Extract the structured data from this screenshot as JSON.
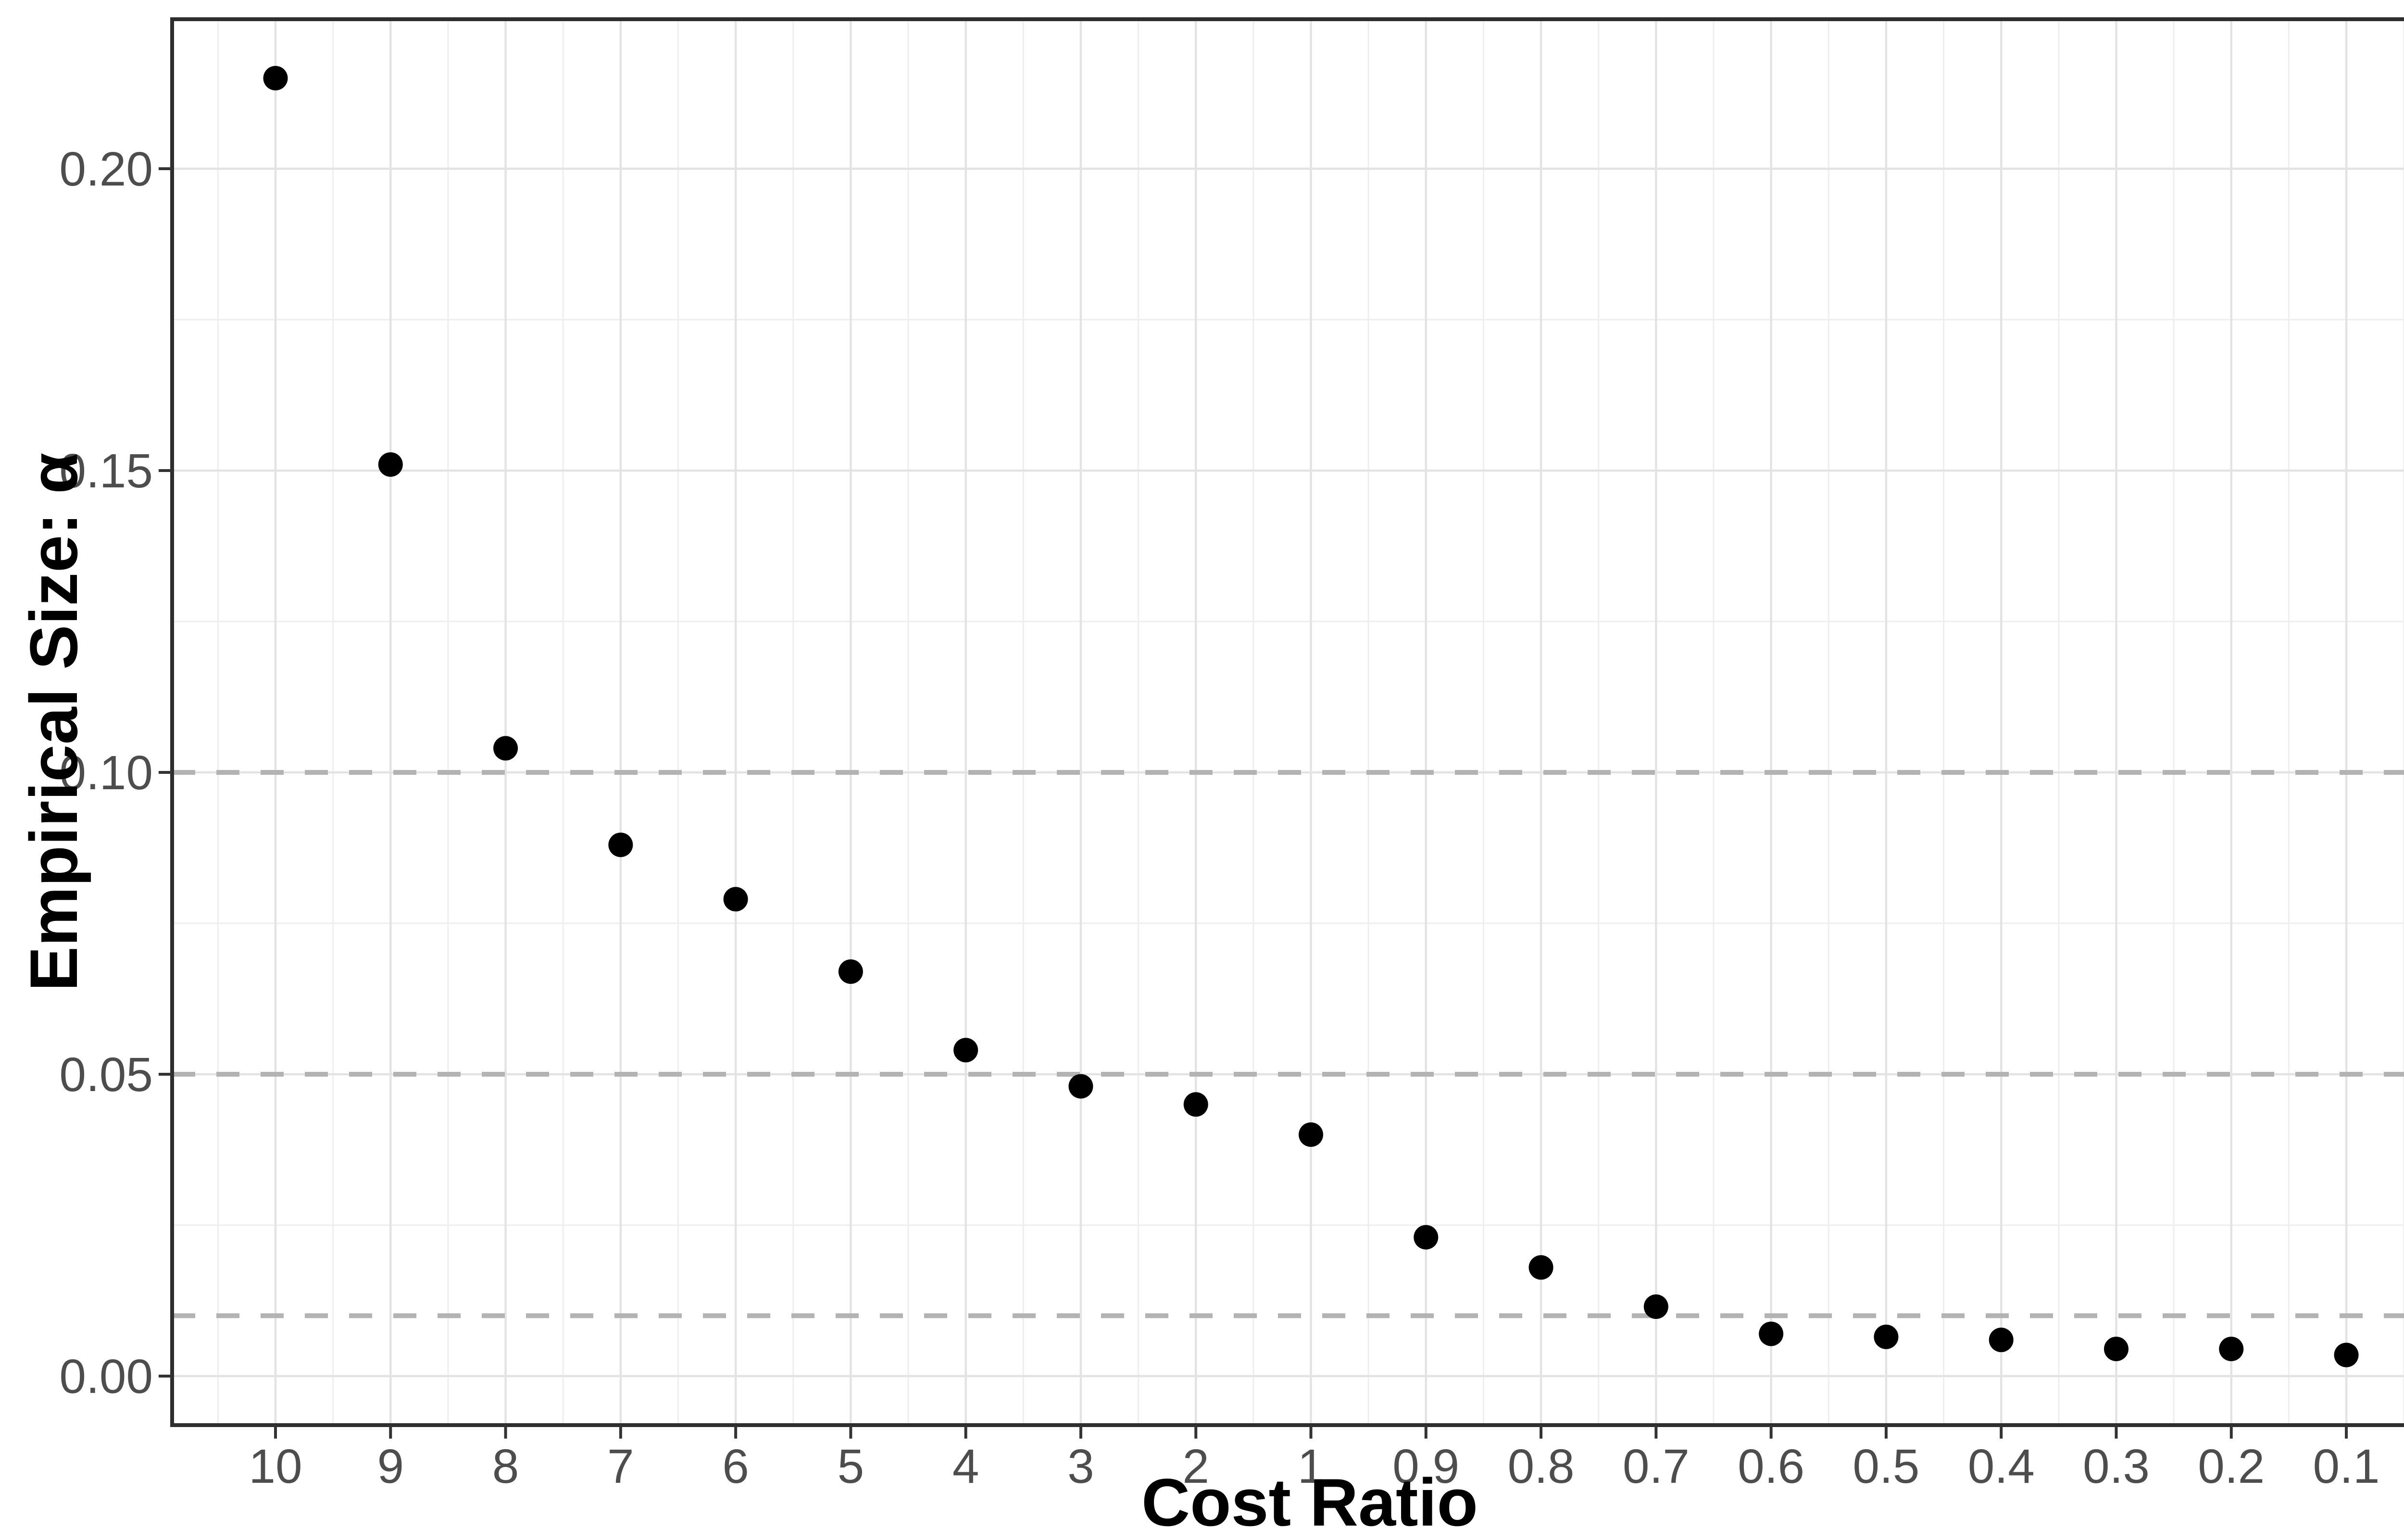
{
  "figure": {
    "background": "#ffffff"
  },
  "chart_data": {
    "type": "scatter",
    "title": "",
    "xlabel": "Cost Ratio",
    "ylabel": "Empirical Size: α",
    "categories": [
      "10",
      "9",
      "8",
      "7",
      "6",
      "5",
      "4",
      "3",
      "2",
      "1",
      "0.9",
      "0.8",
      "0.7",
      "0.6",
      "0.5",
      "0.4",
      "0.3",
      "0.2",
      "0.1"
    ],
    "values": [
      0.215,
      0.151,
      0.104,
      0.088,
      0.079,
      0.067,
      0.054,
      0.048,
      0.045,
      0.04,
      0.023,
      0.018,
      0.0115,
      0.007,
      0.0065,
      0.006,
      0.0045,
      0.0045,
      0.0035
    ],
    "y_tick_labels": [
      "0.00",
      "0.05",
      "0.10",
      "0.15",
      "0.20"
    ],
    "y_tick_values": [
      0,
      0.05,
      0.1,
      0.15,
      0.2
    ],
    "y_minor_values": [
      0.025,
      0.075,
      0.125,
      0.175
    ],
    "ylim": [
      -0.008,
      0.2247
    ],
    "grid": true,
    "legend": false,
    "reference_lines": {
      "values": [
        0.1,
        0.05,
        0.01
      ],
      "style": "dashed",
      "color": "#b3b3b3"
    },
    "colors": {
      "point": "#000000",
      "grid_major": "#e3e3e3",
      "grid_minor": "#eeeeee",
      "panel_border": "#2e2e2e",
      "axis_tick": "#333333",
      "tick_label": "#4d4d4d",
      "axis_title": "#000000",
      "panel_background": "#ffffff"
    }
  }
}
